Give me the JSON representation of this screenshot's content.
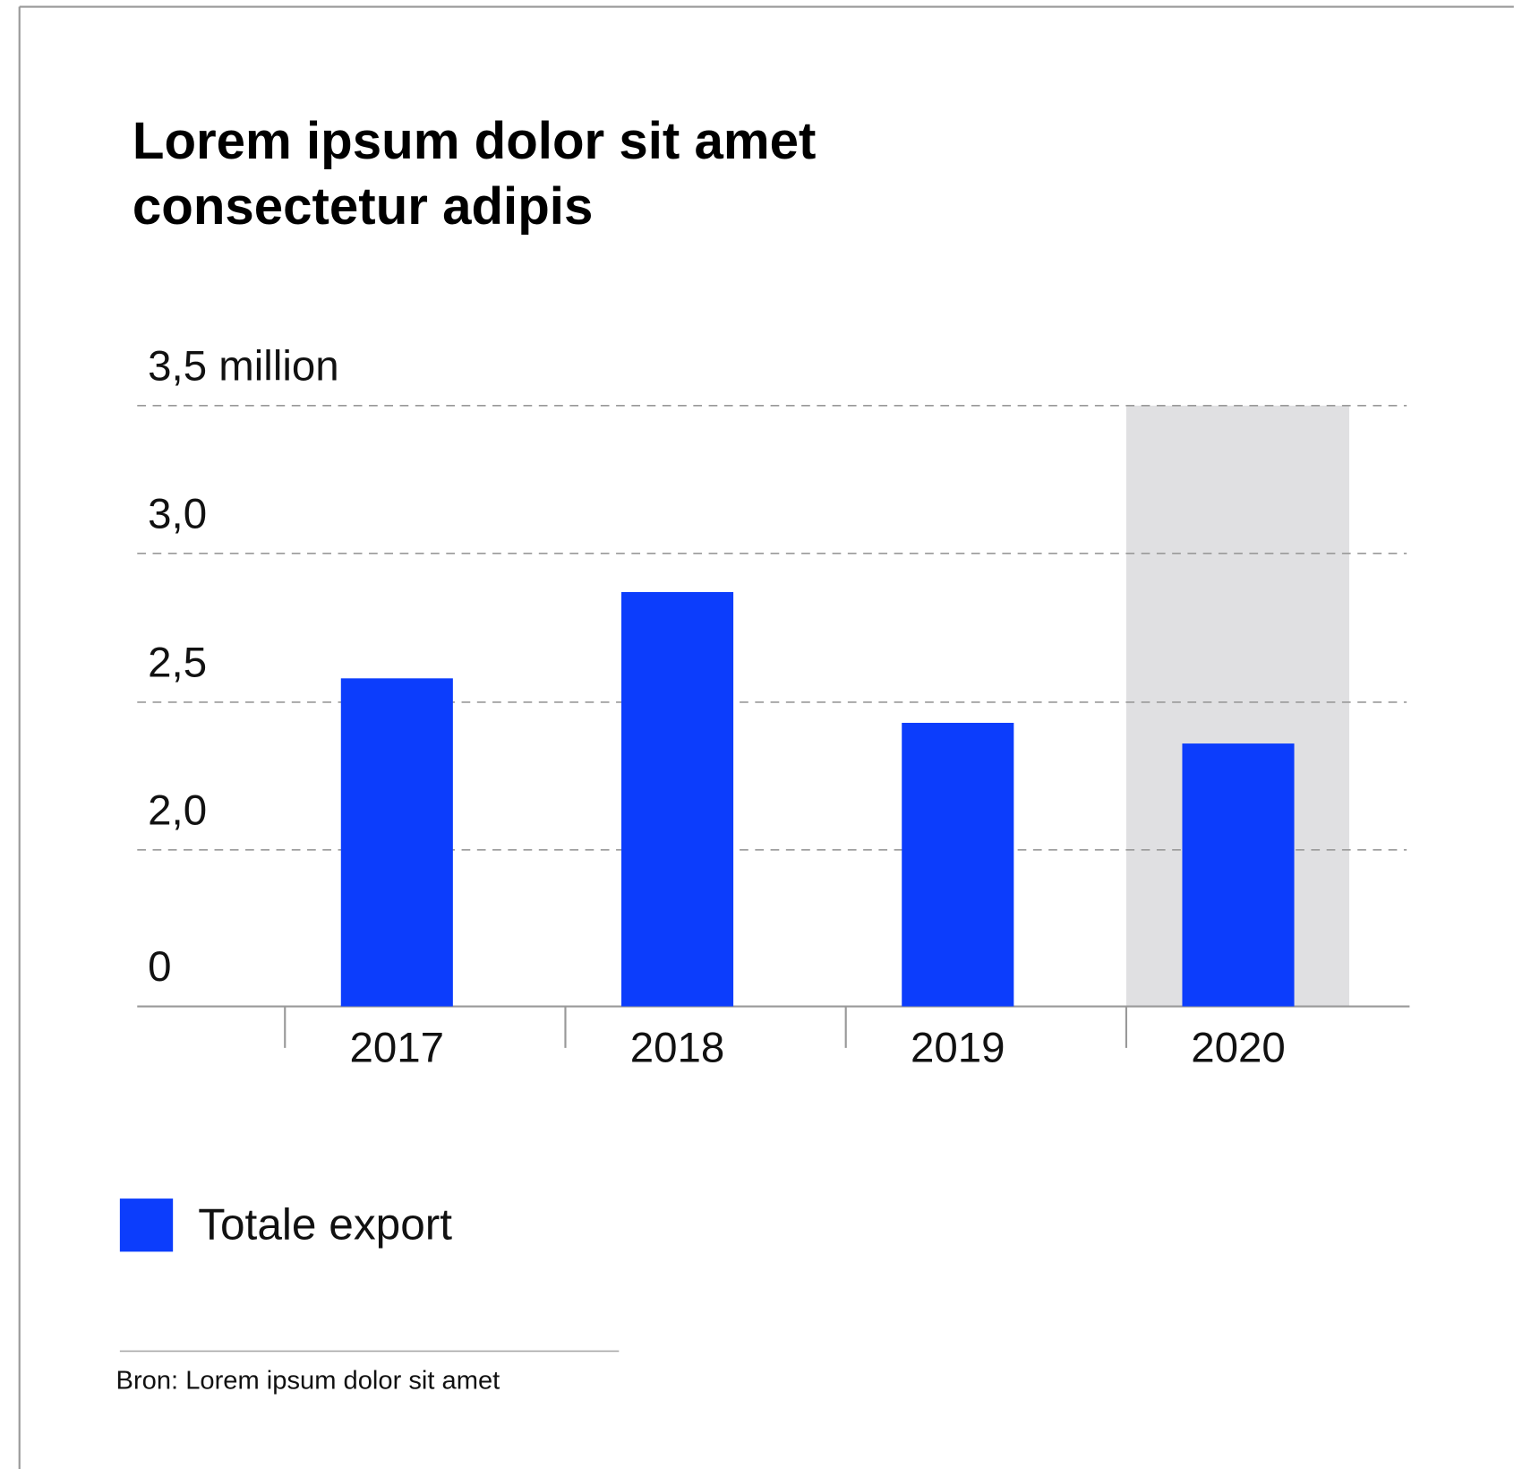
{
  "chart_data": {
    "type": "bar",
    "title": "Lorem ipsum dolor sit amet consectetur adipis",
    "categories": [
      "2017",
      "2018",
      "2019",
      "2020"
    ],
    "series": [
      {
        "name": "Totale export",
        "color": "#0c3dfc",
        "values": [
          2.58,
          2.87,
          2.43,
          2.36
        ]
      }
    ],
    "ylim": [
      0,
      3.5
    ],
    "yticks": [
      0,
      {
        "value": 2.0,
        "label": "2,0"
      },
      {
        "value": 2.5,
        "label": "2,5"
      },
      {
        "value": 3.0,
        "label": "3,0"
      },
      {
        "value": 3.5,
        "label": "3,5 million"
      }
    ],
    "grid": true,
    "highlight": "2020",
    "highlight_color": "#e0e0e2",
    "legend": "bottom-left",
    "source": "Bron: Lorem ipsum dolor sit amet"
  }
}
